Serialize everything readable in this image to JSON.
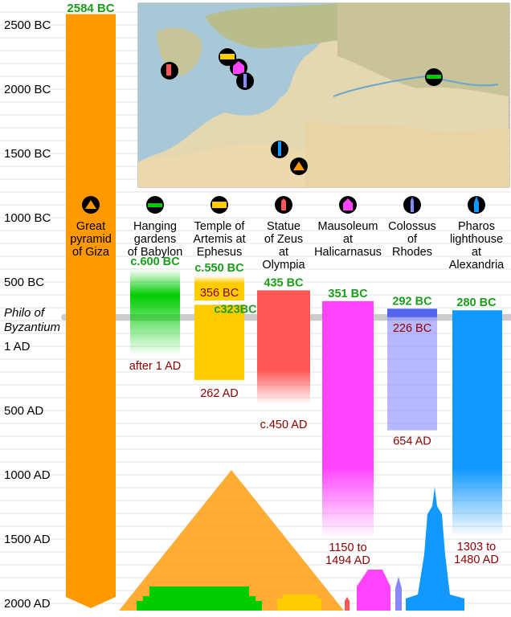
{
  "colors": {
    "pyramid": "#ff9900",
    "gardens": "#00cc00",
    "artemis": "#ffcc00",
    "zeus": "#ff5555",
    "mausoleum": "#ff44ff",
    "colossus": "#8888ff",
    "colossus_dark": "#5566ee",
    "pharos": "#1199ff",
    "start_label": "#1a9e1a",
    "end_label": "#8b0000",
    "grid": "#e3e3e3"
  },
  "chart_data": {
    "type": "bar",
    "orientation": "vertical timeline (years, top = 2600 BC, bottom = 2000 AD)",
    "y_ticks": [
      "2500 BC",
      "2000 BC",
      "1500 BC",
      "1000 BC",
      "500 BC",
      "1 AD",
      "500 AD",
      "1000 AD",
      "1500 AD",
      "2000 AD"
    ],
    "y_tick_values": [
      -2500,
      -2000,
      -1500,
      -1000,
      -500,
      1,
      500,
      1000,
      1500,
      2000
    ],
    "ylim": [
      -2600,
      2000
    ],
    "reference_line": {
      "label": [
        "Philo of",
        "Byzantium"
      ],
      "year": -225
    },
    "wonders": [
      {
        "key": "pyramid",
        "name": [
          "Great",
          "pyramid",
          "of Giza"
        ],
        "icon": "pyramid-icon",
        "start_label": "2584 BC",
        "start": -2584,
        "end": 2000,
        "end_label": ""
      },
      {
        "key": "gardens",
        "name": [
          "Hanging",
          "gardens",
          "of Babylon"
        ],
        "icon": "gardens-icon",
        "start_label": "c.600 BC",
        "start": -600,
        "end": 1,
        "end_label": "after 1 AD"
      },
      {
        "key": "artemis",
        "name": [
          "Temple of",
          "Artemis at",
          "Ephesus"
        ],
        "icon": "temple-icon",
        "start_label": "c.550 BC",
        "start": -550,
        "end": -356,
        "end_label": "356 BC",
        "rebuild_label": "c323BC",
        "rebuild_start": -323,
        "rebuild_end": 262,
        "rebuild_end_label": "262 AD"
      },
      {
        "key": "zeus",
        "name": [
          "Statue",
          "of Zeus",
          "at",
          "Olympia"
        ],
        "icon": "zeus-statue-icon",
        "start_label": "435 BC",
        "start": -435,
        "end": 450,
        "end_label": "c.450 AD"
      },
      {
        "key": "mausoleum",
        "name": [
          "Mausoleum",
          "at",
          "Halicarnasus"
        ],
        "icon": "mausoleum-icon",
        "start_label": "351 BC",
        "start": -351,
        "end": 1494,
        "end_label": "1150 to 1494 AD"
      },
      {
        "key": "colossus",
        "name": [
          "Colossus",
          "of",
          "Rhodes"
        ],
        "icon": "colossus-icon",
        "start_label": "292 BC",
        "start": -292,
        "end": 654,
        "end_label": "654 AD",
        "mid_label": "226 BC",
        "mid": -226
      },
      {
        "key": "pharos",
        "name": [
          "Pharos",
          "lighthouse",
          "at",
          "Alexandria"
        ],
        "icon": "lighthouse-icon",
        "start_label": "280 BC",
        "start": -280,
        "end": 1480,
        "end_label": "1303 to 1480 AD"
      }
    ]
  }
}
